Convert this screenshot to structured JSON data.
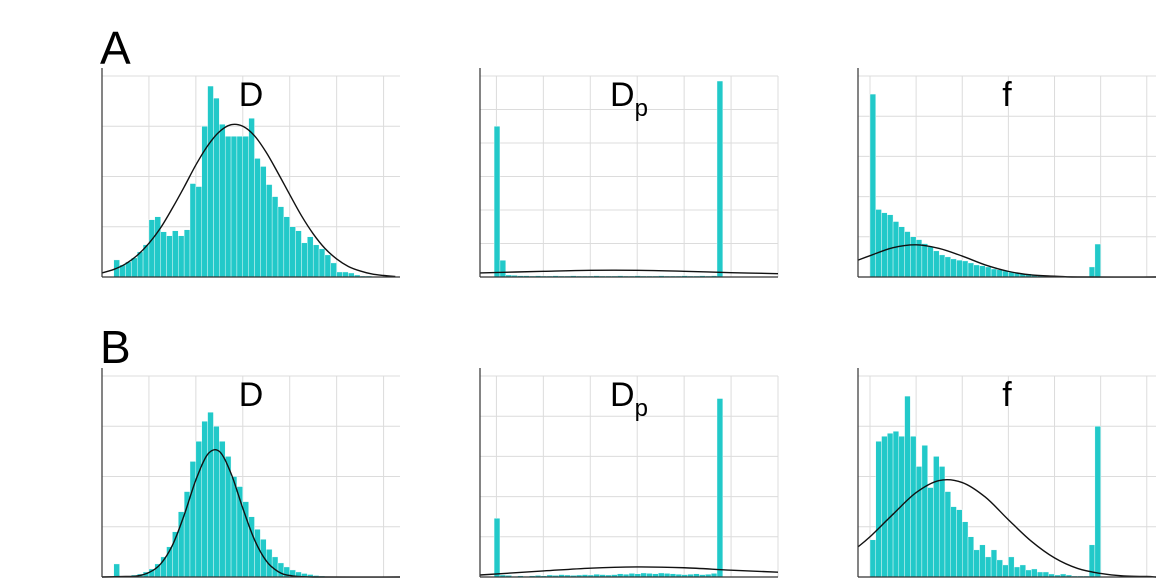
{
  "panel_labels": [
    "A",
    "B"
  ],
  "chart_data": [
    {
      "type": "histogram",
      "title": "D",
      "color": "#22c9c9",
      "bins": [
        0.25,
        0.375,
        0.5,
        0.625,
        0.75,
        0.875,
        1,
        1.125,
        1.25,
        1.375,
        1.5,
        1.625,
        1.75,
        1.875,
        2,
        2.125,
        2.25,
        2.375,
        2.5,
        2.625,
        2.75,
        2.875,
        3,
        3.125,
        3.25,
        3.375,
        3.5,
        3.625,
        3.75,
        3.875,
        4,
        4.125,
        4.25,
        4.375,
        4.5,
        4.625,
        4.75,
        4.875,
        5,
        5.125,
        5.25,
        5.375,
        5.5,
        5.625,
        5.75
      ],
      "values": [
        0.34,
        0.24,
        0.3,
        0.38,
        0.5,
        0.64,
        1.14,
        1.2,
        0.9,
        0.82,
        0.92,
        0.82,
        0.94,
        1.86,
        1.8,
        3,
        3.8,
        3.56,
        3.04,
        2.8,
        2.8,
        2.8,
        2.8,
        3.16,
        2.36,
        2.2,
        1.84,
        1.6,
        1.4,
        1.2,
        1,
        0.92,
        0.68,
        0.8,
        0.64,
        0.56,
        0.44,
        0.28,
        0.1,
        0.1,
        0.08,
        0.04,
        0.02,
        0.02
      ],
      "curve": {
        "x": [
          0,
          0.25,
          0.5,
          0.75,
          1,
          1.25,
          1.5,
          1.75,
          2,
          2.25,
          2.5,
          2.75,
          3,
          3.25,
          3.5,
          3.75,
          4,
          4.25,
          4.5,
          4.75,
          5,
          5.25,
          5.5,
          5.75,
          6,
          6.25
        ],
        "y": [
          0.08,
          0.15,
          0.26,
          0.43,
          0.67,
          0.98,
          1.37,
          1.79,
          2.23,
          2.61,
          2.89,
          3.03,
          3.0,
          2.81,
          2.48,
          2.07,
          1.64,
          1.22,
          0.86,
          0.57,
          0.36,
          0.21,
          0.12,
          0.06,
          0.03,
          0.01
        ]
      },
      "xlim": [
        0,
        6.35
      ],
      "xticks": [
        0,
        1,
        2,
        3,
        4,
        5,
        6
      ],
      "ylim": [
        0,
        4
      ],
      "yticks": [
        0,
        1,
        2,
        3,
        4
      ],
      "grid": true
    },
    {
      "type": "histogram",
      "title": "D",
      "title_subscript": "p",
      "color": "#22c9c9",
      "bins": [
        -0.05,
        0.075,
        0.2,
        0.325,
        0.45,
        0.575,
        0.7,
        0.825,
        0.95,
        1.075,
        1.2,
        1.325,
        1.45,
        1.575,
        1.7,
        1.825,
        1.95,
        2.075,
        2.2,
        2.325,
        2.45,
        2.575,
        2.7,
        2.825,
        2.95,
        3.075,
        3.2,
        3.325,
        3.45,
        3.575,
        3.7,
        3.825,
        3.95,
        4.075,
        4.2,
        4.325,
        4.45,
        4.575,
        4.7,
        4.825
      ],
      "values": [
        4.5,
        0.5,
        0.06,
        0.05,
        0.04,
        0.04,
        0.03,
        0.04,
        0.03,
        0.03,
        0.04,
        0.03,
        0.03,
        0.04,
        0.03,
        0.03,
        0.03,
        0.04,
        0.03,
        0.03,
        0.03,
        0.04,
        0.03,
        0.03,
        0.04,
        0.03,
        0.03,
        0.03,
        0.04,
        0.03,
        0.03,
        0.03,
        0.04,
        0.03,
        0.03,
        0.04,
        0.03,
        0.04,
        5.85
      ],
      "curve": {
        "x": [
          -0.35,
          1,
          2,
          3,
          4,
          5,
          6
        ],
        "y": [
          0.12,
          0.17,
          0.2,
          0.2,
          0.17,
          0.13,
          0.1
        ]
      },
      "xlim": [
        -0.35,
        6
      ],
      "xticks": [
        0,
        1,
        2,
        3,
        4,
        5,
        6
      ],
      "ylim": [
        0,
        6
      ],
      "yticks": [
        0,
        1,
        2,
        3,
        4,
        5,
        6
      ],
      "grid": true
    },
    {
      "type": "histogram",
      "title": "f",
      "color": "#22c9c9",
      "bins": [
        0,
        0.125,
        0.25,
        0.375,
        0.5,
        0.625,
        0.75,
        0.875,
        1,
        1.125,
        1.25,
        1.375,
        1.5,
        1.625,
        1.75,
        1.875,
        2,
        2.125,
        2.25,
        2.375,
        2.5,
        2.625,
        2.75,
        2.875,
        3,
        3.125,
        3.25,
        3.375,
        3.5,
        3.625,
        3.75,
        3.875,
        4,
        4.125,
        4.25,
        4.375,
        4.5,
        4.625,
        4.75,
        4.875,
        5
      ],
      "values": [
        4.55,
        1.68,
        1.6,
        1.55,
        1.38,
        1.25,
        1.13,
        1,
        0.93,
        0.83,
        0.75,
        0.65,
        0.55,
        0.5,
        0.45,
        0.42,
        0.4,
        0.35,
        0.3,
        0.28,
        0.25,
        0.2,
        0.18,
        0.15,
        0.12,
        0.1,
        0.08,
        0.08,
        0.05,
        0.04,
        0.03,
        0.03,
        0.02,
        0.02,
        0.02,
        0.01,
        0,
        0,
        0.25,
        0.82
      ],
      "curve": {
        "x": [
          -0.26,
          0,
          0.5,
          1,
          1.5,
          2,
          2.5,
          3,
          3.5,
          4,
          4.5,
          6.2
        ],
        "y": [
          0.42,
          0.53,
          0.73,
          0.8,
          0.71,
          0.52,
          0.3,
          0.14,
          0.05,
          0.02,
          0,
          0
        ]
      },
      "xlim": [
        -0.26,
        6.2
      ],
      "xticks": [
        0,
        1,
        2,
        3,
        4,
        5,
        6
      ],
      "ylim": [
        0,
        5
      ],
      "yticks": [
        0,
        1,
        2,
        3,
        4,
        5
      ],
      "grid": true
    },
    {
      "type": "histogram",
      "title": "D",
      "color": "#22c9c9",
      "bins": [
        0.25,
        0.375,
        0.5,
        0.625,
        0.75,
        0.875,
        1,
        1.125,
        1.25,
        1.375,
        1.5,
        1.625,
        1.75,
        1.875,
        2,
        2.125,
        2.25,
        2.375,
        2.5,
        2.625,
        2.75,
        2.875,
        3,
        3.125,
        3.25,
        3.375,
        3.5,
        3.625,
        3.75,
        3.875,
        4,
        4.125,
        4.25,
        4.375,
        4.5,
        4.625,
        4.75,
        4.875
      ],
      "values": [
        0.26,
        0,
        0.02,
        0.04,
        0.06,
        0.1,
        0.16,
        0.26,
        0.4,
        0.6,
        0.9,
        1.3,
        1.7,
        2.3,
        2.7,
        3.1,
        3.28,
        3,
        2.7,
        2.4,
        2,
        1.8,
        1.5,
        1.2,
        0.95,
        0.75,
        0.55,
        0.4,
        0.28,
        0.2,
        0.14,
        0.1,
        0.07,
        0.05,
        0.03,
        0.02,
        0.01
      ],
      "curve": {
        "x": [
          0,
          0.5,
          0.75,
          1,
          1.25,
          1.5,
          1.75,
          2,
          2.25,
          2.5,
          2.75,
          3,
          3.25,
          3.5,
          3.75,
          4,
          4.5,
          6.35
        ],
        "y": [
          0,
          0.01,
          0.02,
          0.09,
          0.26,
          0.63,
          1.23,
          1.93,
          2.44,
          2.5,
          2.06,
          1.37,
          0.74,
          0.32,
          0.11,
          0.03,
          0,
          0
        ]
      },
      "xlim": [
        0,
        6.35
      ],
      "xticks": [
        0,
        1,
        2,
        3,
        4,
        5,
        6
      ],
      "ylim": [
        0,
        4
      ],
      "yticks": [
        0,
        1,
        2,
        3,
        4
      ],
      "grid": true
    },
    {
      "type": "histogram",
      "title": "D",
      "title_subscript": "p",
      "color": "#22c9c9",
      "bins": [
        -0.05,
        0.075,
        0.2,
        0.325,
        0.45,
        0.575,
        0.7,
        0.825,
        0.95,
        1.075,
        1.2,
        1.325,
        1.45,
        1.575,
        1.7,
        1.825,
        1.95,
        2.075,
        2.2,
        2.325,
        2.45,
        2.575,
        2.7,
        2.825,
        2.95,
        3.075,
        3.2,
        3.325,
        3.45,
        3.575,
        3.7,
        3.825,
        3.95,
        4.075,
        4.2,
        4.325,
        4.45,
        4.575,
        4.7,
        4.825
      ],
      "values": [
        1.46,
        0.05,
        0.04,
        0.02,
        0.03,
        0.02,
        0.03,
        0.04,
        0.03,
        0.05,
        0.04,
        0.06,
        0.05,
        0.04,
        0.05,
        0.06,
        0.05,
        0.07,
        0.06,
        0.05,
        0.06,
        0.08,
        0.07,
        0.09,
        0.08,
        0.1,
        0.09,
        0.08,
        0.1,
        0.09,
        0.08,
        0.07,
        0.06,
        0.07,
        0.08,
        0.06,
        0.07,
        0.09,
        4.44
      ],
      "curve": {
        "x": [
          -0.35,
          1,
          2,
          3,
          4,
          5,
          6
        ],
        "y": [
          0.05,
          0.15,
          0.22,
          0.25,
          0.23,
          0.17,
          0.12
        ]
      },
      "xlim": [
        -0.35,
        6
      ],
      "xticks": [
        0,
        1,
        2,
        3,
        4,
        5,
        6
      ],
      "ylim": [
        0,
        5
      ],
      "yticks": [
        0,
        1,
        2,
        3,
        4,
        5
      ],
      "grid": true
    },
    {
      "type": "histogram",
      "title": "f",
      "color": "#22c9c9",
      "bins": [
        0,
        0.125,
        0.25,
        0.375,
        0.5,
        0.625,
        0.75,
        0.875,
        1,
        1.125,
        1.25,
        1.375,
        1.5,
        1.625,
        1.75,
        1.875,
        2,
        2.125,
        2.25,
        2.375,
        2.5,
        2.625,
        2.75,
        2.875,
        3,
        3.125,
        3.25,
        3.375,
        3.5,
        3.625,
        3.75,
        3.875,
        4,
        4.125,
        4.25,
        4.375,
        4.5,
        4.625,
        4.75,
        4.875,
        5
      ],
      "values": [
        0.74,
        2.7,
        2.8,
        2.86,
        2.9,
        2.8,
        3.6,
        2.8,
        2.2,
        2.62,
        1.78,
        2.4,
        2.2,
        1.7,
        1.4,
        1.34,
        1.1,
        0.8,
        0.54,
        0.64,
        0.4,
        0.54,
        0.34,
        0.24,
        0.4,
        0.2,
        0.24,
        0.14,
        0.16,
        0.1,
        0.1,
        0.06,
        0.04,
        0.06,
        0.04,
        0.02,
        0.02,
        0.02,
        0.64,
        3
      ],
      "curve": {
        "x": [
          -0.26,
          0,
          0.5,
          1,
          1.5,
          2,
          2.5,
          3,
          3.5,
          4,
          4.5,
          5,
          5.5,
          6,
          6.2
        ],
        "y": [
          0.6,
          0.8,
          1.25,
          1.68,
          1.92,
          1.88,
          1.59,
          1.14,
          0.71,
          0.38,
          0.17,
          0.07,
          0.02,
          0.01,
          0
        ]
      },
      "xlim": [
        -0.26,
        6.2
      ],
      "xticks": [
        0,
        1,
        2,
        3,
        4,
        5,
        6
      ],
      "ylim": [
        0,
        4
      ],
      "yticks": [
        0,
        1,
        2,
        3,
        4
      ],
      "grid": true
    }
  ]
}
